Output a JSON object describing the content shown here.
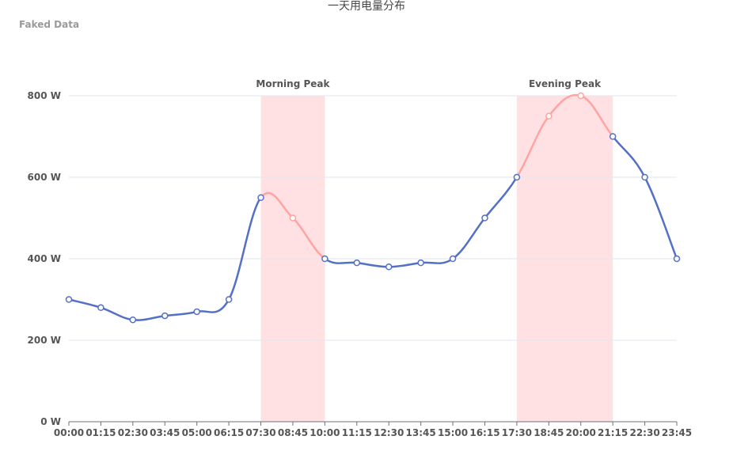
{
  "chart_data": {
    "type": "line",
    "title": "一天用电量分布",
    "subtitle": "Faked Data",
    "categories": [
      "00:00",
      "01:15",
      "02:30",
      "03:45",
      "05:00",
      "06:15",
      "07:30",
      "08:45",
      "10:00",
      "11:15",
      "12:30",
      "13:45",
      "15:00",
      "16:15",
      "17:30",
      "18:45",
      "20:00",
      "21:15",
      "22:30",
      "23:45"
    ],
    "series": [
      {
        "values": [
          300,
          280,
          250,
          260,
          270,
          300,
          550,
          500,
          400,
          390,
          380,
          390,
          400,
          500,
          600,
          750,
          800,
          700,
          600,
          400
        ]
      }
    ],
    "ylim": [
      0,
      800
    ],
    "yticks": [
      0,
      200,
      400,
      600,
      800
    ],
    "yunit": " W",
    "grid": true,
    "smooth": true,
    "mark_areas": [
      {
        "label": "Morning Peak",
        "from": "07:30",
        "to": "10:00"
      },
      {
        "label": "Evening Peak",
        "from": "17:30",
        "to": "21:15"
      }
    ],
    "colors": {
      "line": "#5470c6",
      "highlight_line": "#ffa3a3",
      "area": "#ffe0e3",
      "grid": "#e0e6f1",
      "axis": "#6e7079"
    }
  }
}
